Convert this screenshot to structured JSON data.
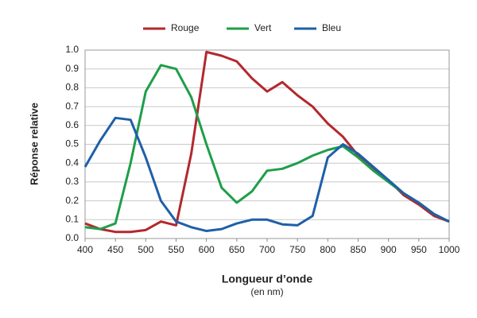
{
  "chart_data": {
    "type": "line",
    "x_label": "Longueur d’onde",
    "x_unit": "(en nm)",
    "y_label": "Réponse relative",
    "x": [
      400,
      425,
      450,
      475,
      500,
      525,
      550,
      575,
      600,
      625,
      650,
      675,
      700,
      725,
      750,
      775,
      800,
      825,
      850,
      875,
      900,
      925,
      950,
      975,
      1000
    ],
    "series": [
      {
        "name": "Rouge",
        "color": "#b3282d",
        "values": [
          0.08,
          0.05,
          0.035,
          0.035,
          0.045,
          0.09,
          0.07,
          0.45,
          0.99,
          0.97,
          0.94,
          0.85,
          0.78,
          0.83,
          0.76,
          0.7,
          0.61,
          0.54,
          0.44,
          0.37,
          0.31,
          0.23,
          0.18,
          0.12,
          0.09
        ]
      },
      {
        "name": "Vert",
        "color": "#1f9e4a",
        "values": [
          0.06,
          0.05,
          0.08,
          0.4,
          0.78,
          0.92,
          0.9,
          0.75,
          0.5,
          0.27,
          0.19,
          0.25,
          0.36,
          0.37,
          0.4,
          0.44,
          0.47,
          0.49,
          0.43,
          0.36,
          0.3,
          0.24,
          0.19,
          0.13,
          0.09
        ]
      },
      {
        "name": "Bleu",
        "color": "#1f5fa8",
        "values": [
          0.38,
          0.52,
          0.64,
          0.63,
          0.43,
          0.2,
          0.09,
          0.06,
          0.04,
          0.05,
          0.08,
          0.1,
          0.1,
          0.075,
          0.07,
          0.12,
          0.43,
          0.5,
          0.45,
          0.38,
          0.31,
          0.24,
          0.19,
          0.13,
          0.09
        ]
      }
    ],
    "xlim": [
      400,
      1000
    ],
    "xticks": [
      400,
      450,
      500,
      550,
      600,
      650,
      700,
      750,
      800,
      850,
      900,
      950,
      1000
    ],
    "ylim": [
      0,
      1
    ],
    "yticks": [
      {
        "value": 0,
        "label": "0.0"
      },
      0.1,
      0.2,
      0.3,
      0.4,
      0.5,
      0.6,
      0.7,
      0.8,
      0.9,
      {
        "value": 1,
        "label": "1.0"
      }
    ],
    "grid": true,
    "legend": "top"
  }
}
